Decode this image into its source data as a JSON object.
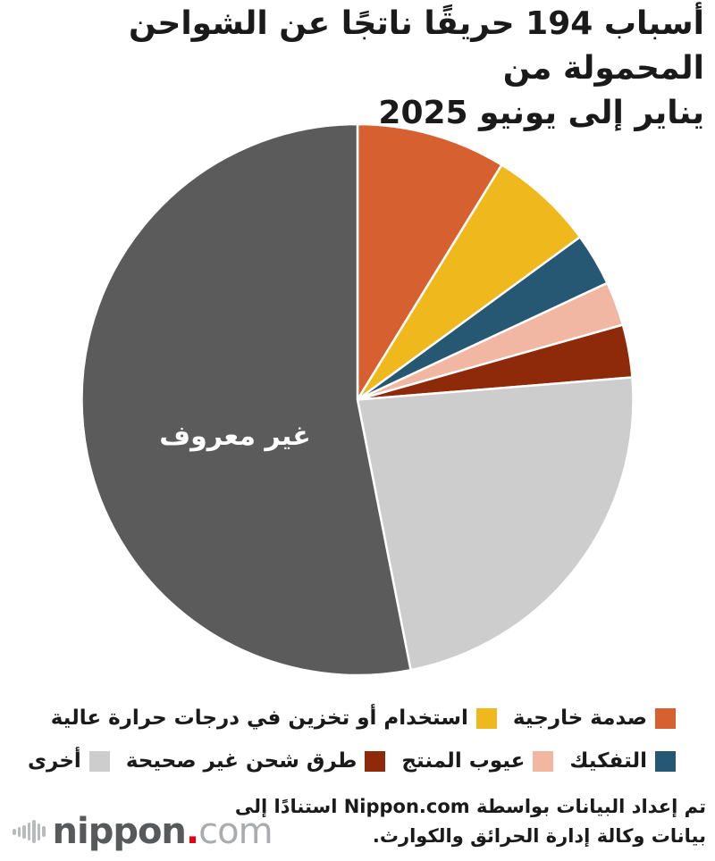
{
  "title": {
    "line1": "أسباب 194 حريقًا ناتجًا عن الشواحن المحمولة من",
    "line2": "يناير إلى يونيو 2025"
  },
  "chart_data": {
    "type": "pie",
    "title": "أسباب 194 حريقًا ناتجًا عن الشواحن المحمولة من يناير إلى يونيو 2025",
    "total": 194,
    "start_angle": "12-oclock",
    "direction": "clockwise",
    "legend_position": "bottom-right, two rows, rtl",
    "separator_color": "#FFFFFF",
    "slices": [
      {
        "label": "صدمة خارجية",
        "value": 17,
        "color": "#D6602F",
        "legend_row": 1
      },
      {
        "label": "استخدام أو تخزين في درجات حرارة عالية",
        "value": 12,
        "color": "#EFB81D",
        "legend_row": 1
      },
      {
        "label": "التفكيك",
        "value": 6,
        "color": "#275873",
        "legend_row": 2
      },
      {
        "label": "عيوب المنتج",
        "value": 5,
        "color": "#F2B7A3",
        "legend_row": 2
      },
      {
        "label": "طرق شحن غير صحيحة",
        "value": 6,
        "color": "#8E2909",
        "legend_row": 2
      },
      {
        "label": "أخرى",
        "value": 45,
        "color": "#CDCDCD",
        "legend_row": 2
      },
      {
        "label": "غير معروف",
        "value": 103,
        "color": "#5B5B5B",
        "legend_row": null
      }
    ],
    "on_slice_label": {
      "text": "غير معروف",
      "color": "#FFFFFF"
    }
  },
  "footer": {
    "line1": "تم إعداد البيانات بواسطة Nippon.com استنادًا إلى",
    "line2": "بيانات وكالة إدارة الحرائق والكوارث."
  },
  "logo": {
    "name": "nippon",
    "dot": ".",
    "tld": "com",
    "name_color": "#58595B",
    "dot_color": "#E60013",
    "tld_color": "#A9ABAE",
    "bars_color": "#B9BABC"
  }
}
